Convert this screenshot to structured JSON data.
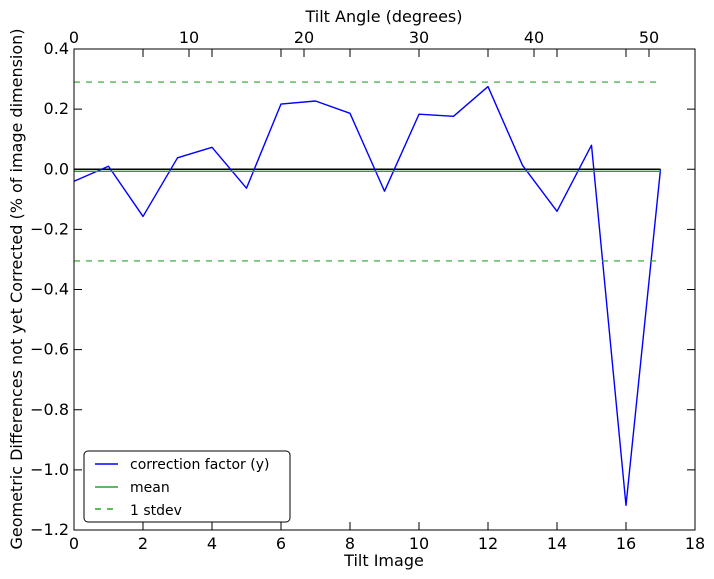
{
  "chart_data": {
    "type": "line",
    "xlabel": "Tilt Image",
    "ylabel": "Geometric Differences not yet Corrected (% of image dimension)",
    "top_xlabel": "Tilt Angle (degrees)",
    "xlim": [
      0,
      18
    ],
    "ylim": [
      -1.2,
      0.4
    ],
    "top_xlim": [
      0,
      54
    ],
    "x_ticks": [
      0,
      2,
      4,
      6,
      8,
      10,
      12,
      14,
      16,
      18
    ],
    "y_ticks": [
      -1.2,
      -1.0,
      -0.8,
      -0.6,
      -0.4,
      -0.2,
      0.0,
      0.2,
      0.4
    ],
    "top_x_ticks": [
      0,
      10,
      20,
      30,
      40,
      50
    ],
    "x_tick_labels": [
      "0",
      "2",
      "4",
      "6",
      "8",
      "10",
      "12",
      "14",
      "16",
      "18"
    ],
    "y_tick_labels": [
      "−1.2",
      "−1.0",
      "−0.8",
      "−0.6",
      "−0.4",
      "−0.2",
      "0.0",
      "0.2",
      "0.4"
    ],
    "top_x_tick_labels": [
      "0",
      "10",
      "20",
      "30",
      "40",
      "50"
    ],
    "grid": false,
    "legend_position": "lower-left",
    "zero_line": 0.0,
    "series": [
      {
        "name": "correction factor (y)",
        "style": "solid",
        "color": "#0000ff",
        "x": [
          0,
          1,
          2,
          3,
          4,
          5,
          6,
          7,
          8,
          9,
          10,
          11,
          12,
          13,
          14,
          15,
          16,
          17
        ],
        "y": [
          -0.04,
          0.01,
          -0.157,
          0.038,
          0.073,
          -0.063,
          0.217,
          0.227,
          0.186,
          -0.073,
          0.183,
          0.176,
          0.275,
          0.013,
          -0.14,
          0.08,
          -1.118,
          0.0
        ]
      },
      {
        "name": "mean",
        "style": "solid",
        "color": "#2ca02c",
        "x": [
          0,
          17
        ],
        "y": [
          -0.007,
          -0.007
        ]
      },
      {
        "name": "1 stdev",
        "style": "dashed",
        "color": "#2ca02c",
        "x": [
          0,
          17
        ],
        "y": [
          0.29,
          0.29
        ]
      },
      {
        "name": "",
        "style": "dashed",
        "color": "#2ca02c",
        "x": [
          0,
          17
        ],
        "y": [
          -0.305,
          -0.305
        ]
      }
    ]
  }
}
